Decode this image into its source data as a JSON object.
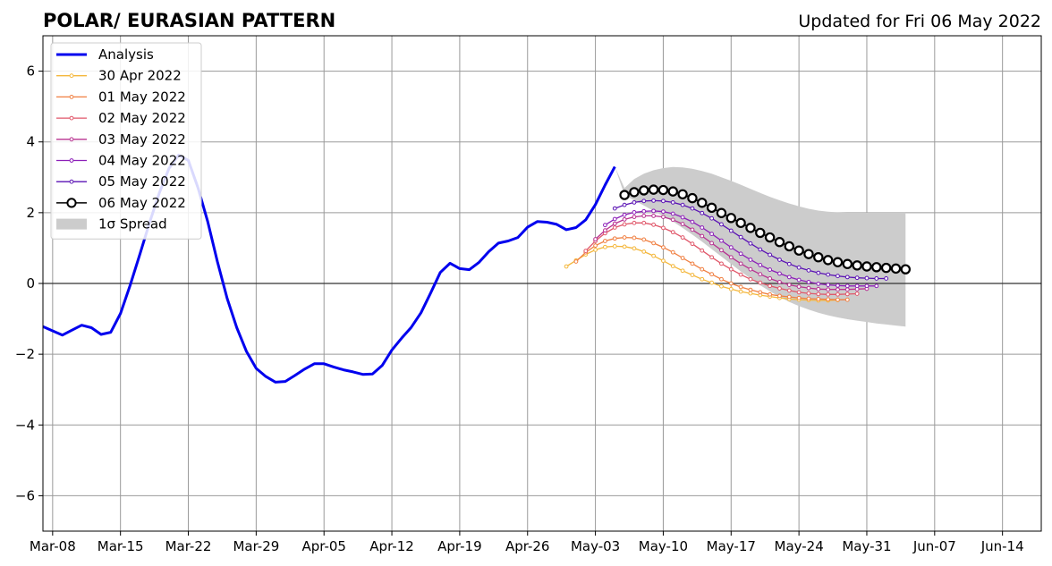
{
  "chart_data": {
    "type": "line",
    "title": "POLAR/ EURASIAN  PATTERN",
    "subtitle": "Updated for Fri 06 May 2022",
    "xlabel": "",
    "ylabel": "",
    "ylim": [
      -7,
      7
    ],
    "xlim": [
      "2022-03-07",
      "2022-06-18"
    ],
    "yticks": [
      -6,
      -4,
      -2,
      0,
      2,
      4,
      6
    ],
    "ytick_labels": [
      "−6",
      "−4",
      "−2",
      "0",
      "2",
      "4",
      "6"
    ],
    "xticks": [
      "2022-03-08",
      "2022-03-15",
      "2022-03-22",
      "2022-03-29",
      "2022-04-05",
      "2022-04-12",
      "2022-04-19",
      "2022-04-26",
      "2022-05-03",
      "2022-05-10",
      "2022-05-17",
      "2022-05-24",
      "2022-05-31",
      "2022-06-07",
      "2022-06-14"
    ],
    "xtick_labels": [
      "Mar-08",
      "Mar-15",
      "Mar-22",
      "Mar-29",
      "Apr-05",
      "Apr-12",
      "Apr-19",
      "Apr-26",
      "May-03",
      "May-10",
      "May-17",
      "May-24",
      "May-31",
      "Jun-07",
      "Jun-14"
    ],
    "grid": true,
    "zero_line": true,
    "legend_position": "top-left",
    "analysis": {
      "name": "Analysis",
      "color": "#0000ee",
      "start_date": "2022-03-07",
      "values": [
        -1.22,
        -1.34,
        -1.46,
        -1.32,
        -1.18,
        -1.25,
        -1.44,
        -1.38,
        -0.85,
        -0.05,
        0.82,
        1.72,
        2.55,
        3.25,
        3.63,
        3.48,
        2.7,
        1.75,
        0.62,
        -0.42,
        -1.25,
        -1.92,
        -2.4,
        -2.63,
        -2.79,
        -2.77,
        -2.6,
        -2.42,
        -2.27,
        -2.27,
        -2.36,
        -2.44,
        -2.5,
        -2.57,
        -2.56,
        -2.32,
        -1.88,
        -1.55,
        -1.24,
        -0.83,
        -0.27,
        0.31,
        0.57,
        0.42,
        0.39,
        0.6,
        0.9,
        1.14,
        1.2,
        1.3,
        1.59,
        1.75,
        1.73,
        1.67,
        1.52,
        1.58,
        1.8,
        2.23,
        2.78,
        3.3
      ]
    },
    "forecasts": [
      {
        "name": "30 Apr 2022",
        "color": "#f4b73c",
        "start_date": "2022-04-30",
        "values": [
          0.48,
          0.65,
          0.82,
          0.95,
          1.03,
          1.05,
          1.04,
          0.99,
          0.9,
          0.78,
          0.64,
          0.49,
          0.36,
          0.24,
          0.12,
          0.02,
          -0.08,
          -0.16,
          -0.23,
          -0.28,
          -0.33,
          -0.37,
          -0.41,
          -0.44,
          -0.46,
          -0.47,
          -0.48,
          -0.48,
          -0.47
        ]
      },
      {
        "name": "01 May 2022",
        "color": "#f07f41",
        "start_date": "2022-05-01",
        "values": [
          0.62,
          0.88,
          1.07,
          1.2,
          1.27,
          1.3,
          1.29,
          1.24,
          1.14,
          1.02,
          0.88,
          0.72,
          0.56,
          0.4,
          0.26,
          0.12,
          0.0,
          -0.1,
          -0.18,
          -0.25,
          -0.31,
          -0.35,
          -0.38,
          -0.41,
          -0.43,
          -0.44,
          -0.45,
          -0.46,
          -0.46
        ]
      },
      {
        "name": "02 May 2022",
        "color": "#e0576a",
        "start_date": "2022-05-02",
        "values": [
          0.92,
          1.2,
          1.42,
          1.58,
          1.67,
          1.71,
          1.71,
          1.66,
          1.57,
          1.45,
          1.3,
          1.12,
          0.93,
          0.74,
          0.56,
          0.4,
          0.25,
          0.12,
          0.02,
          -0.07,
          -0.14,
          -0.2,
          -0.25,
          -0.28,
          -0.3,
          -0.31,
          -0.31,
          -0.3,
          -0.29
        ]
      },
      {
        "name": "03 May 2022",
        "color": "#b83391",
        "start_date": "2022-05-03",
        "values": [
          1.25,
          1.5,
          1.69,
          1.81,
          1.88,
          1.91,
          1.91,
          1.88,
          1.8,
          1.68,
          1.52,
          1.34,
          1.14,
          0.94,
          0.74,
          0.56,
          0.4,
          0.26,
          0.14,
          0.04,
          -0.04,
          -0.09,
          -0.13,
          -0.16,
          -0.17,
          -0.17,
          -0.17,
          -0.16,
          -0.15
        ]
      },
      {
        "name": "04 May 2022",
        "color": "#8c1fb8",
        "start_date": "2022-05-04",
        "values": [
          1.65,
          1.82,
          1.94,
          2.01,
          2.04,
          2.05,
          2.03,
          1.97,
          1.87,
          1.74,
          1.58,
          1.4,
          1.21,
          1.02,
          0.84,
          0.67,
          0.52,
          0.39,
          0.28,
          0.18,
          0.1,
          0.04,
          -0.01,
          -0.04,
          -0.06,
          -0.07,
          -0.07,
          -0.07,
          -0.07
        ]
      },
      {
        "name": "05 May 2022",
        "color": "#5a12b4",
        "start_date": "2022-05-05",
        "values": [
          2.12,
          2.22,
          2.29,
          2.33,
          2.34,
          2.33,
          2.29,
          2.22,
          2.12,
          1.99,
          1.84,
          1.67,
          1.49,
          1.31,
          1.13,
          0.96,
          0.81,
          0.67,
          0.55,
          0.45,
          0.37,
          0.3,
          0.25,
          0.21,
          0.18,
          0.16,
          0.15,
          0.14,
          0.14
        ]
      },
      {
        "name": "06 May 2022",
        "color": "#000000",
        "start_date": "2022-05-06",
        "marker": "open-circle",
        "values": [
          2.5,
          2.58,
          2.63,
          2.65,
          2.64,
          2.6,
          2.52,
          2.41,
          2.28,
          2.14,
          1.99,
          1.85,
          1.71,
          1.57,
          1.43,
          1.3,
          1.17,
          1.05,
          0.93,
          0.83,
          0.74,
          0.66,
          0.6,
          0.55,
          0.51,
          0.48,
          0.46,
          0.44,
          0.42,
          0.4
        ]
      }
    ],
    "spread": {
      "name": "1σ Spread",
      "color": "#cccccc",
      "start_date": "2022-05-05",
      "upper": [
        3.3,
        2.7,
        2.95,
        3.1,
        3.2,
        3.26,
        3.29,
        3.28,
        3.24,
        3.18,
        3.1,
        3.0,
        2.9,
        2.79,
        2.67,
        2.56,
        2.45,
        2.35,
        2.26,
        2.18,
        2.11,
        2.06,
        2.03,
        2.01,
        2.0,
        2.0,
        2.0,
        2.0,
        2.0,
        2.0,
        2.0
      ],
      "lower": [
        3.3,
        2.5,
        2.35,
        2.2,
        2.05,
        1.9,
        1.75,
        1.57,
        1.38,
        1.18,
        0.97,
        0.76,
        0.55,
        0.34,
        0.14,
        -0.05,
        -0.22,
        -0.38,
        -0.52,
        -0.64,
        -0.74,
        -0.83,
        -0.9,
        -0.96,
        -1.01,
        -1.05,
        -1.09,
        -1.13,
        -1.16,
        -1.19,
        -1.22
      ]
    },
    "legend": [
      {
        "label": "Analysis",
        "color": "#0000ee",
        "style": "thick-line"
      },
      {
        "label": "30 Apr 2022",
        "color": "#f4b73c",
        "style": "dot-line"
      },
      {
        "label": "01 May 2022",
        "color": "#f07f41",
        "style": "dot-line"
      },
      {
        "label": "02 May 2022",
        "color": "#e0576a",
        "style": "dot-line"
      },
      {
        "label": "03 May 2022",
        "color": "#b83391",
        "style": "dot-line"
      },
      {
        "label": "04 May 2022",
        "color": "#8c1fb8",
        "style": "dot-line"
      },
      {
        "label": "05 May 2022",
        "color": "#5a12b4",
        "style": "dot-line"
      },
      {
        "label": "06 May 2022",
        "color": "#000000",
        "style": "circle-line"
      },
      {
        "label": "1σ Spread",
        "color": "#cccccc",
        "style": "patch"
      }
    ]
  }
}
